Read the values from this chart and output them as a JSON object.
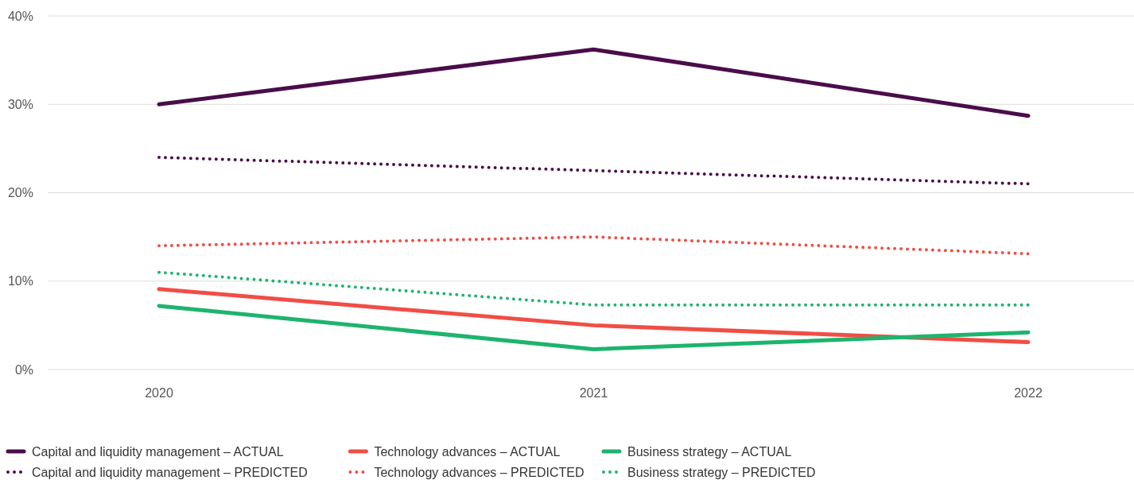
{
  "chart_data": {
    "type": "line",
    "categories": [
      "2020",
      "2021",
      "2022"
    ],
    "ylim": [
      0,
      40
    ],
    "yticks": [
      {
        "value": 0,
        "label": "0%"
      },
      {
        "value": 10,
        "label": "10%"
      },
      {
        "value": 20,
        "label": "20%"
      },
      {
        "value": 30,
        "label": "30%"
      },
      {
        "value": 40,
        "label": "40%"
      }
    ],
    "grid": "y",
    "legend": "bottom",
    "marker": "none",
    "series": [
      {
        "name": "Capital and liquidity management – ACTUAL",
        "color": "#4a0d4a",
        "line_style": "solid",
        "values": [
          30,
          36.2,
          28.7
        ]
      },
      {
        "name": "Technology advances – ACTUAL",
        "color": "#f04e45",
        "line_style": "solid",
        "values": [
          9.1,
          5,
          3.1
        ]
      },
      {
        "name": "Business strategy – ACTUAL",
        "color": "#1db46e",
        "line_style": "solid",
        "values": [
          7.2,
          2.3,
          4.2
        ]
      },
      {
        "name": "Capital and liquidity management – PREDICTED",
        "color": "#4a0d4a",
        "line_style": "dotted",
        "values": [
          24,
          22.5,
          21
        ]
      },
      {
        "name": "Technology advances – PREDICTED",
        "color": "#f04e45",
        "line_style": "dotted",
        "values": [
          14,
          15,
          13.1
        ]
      },
      {
        "name": "Business strategy – PREDICTED",
        "color": "#1db46e",
        "line_style": "dotted",
        "values": [
          11,
          7.3,
          7.3
        ]
      }
    ]
  }
}
